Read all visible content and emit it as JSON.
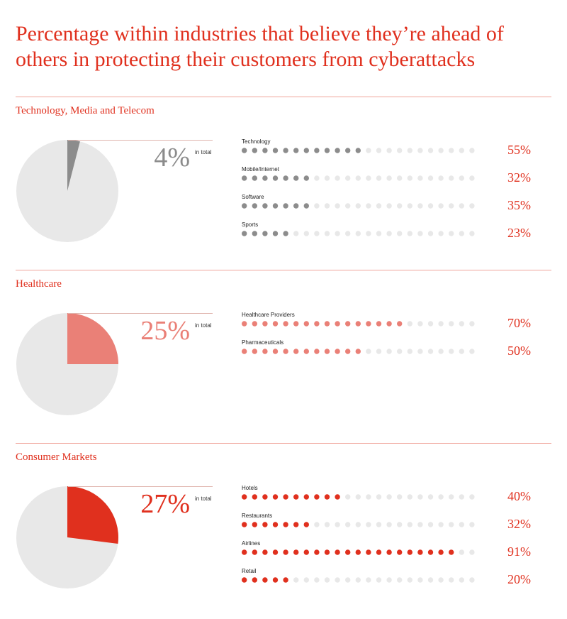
{
  "title": "Percentage within industries that believe they’re ahead of others in protecting their customers from cyberattacks",
  "in_total_label": "in total",
  "colors": {
    "accent": "#e0301e",
    "empty": "#e8e8e8"
  },
  "chart_data": [
    {
      "type": "pie",
      "section": "Technology, Media and Telecom",
      "total_label": "4%",
      "total_value": 4,
      "color": "#8c8c8c",
      "bars": {
        "type": "bar",
        "categories": [
          "Technology",
          "Mobile/Internet",
          "Software",
          "Sports"
        ],
        "values": [
          55,
          32,
          35,
          23
        ],
        "value_labels": [
          "55%",
          "32%",
          "35%",
          "23%"
        ],
        "filled_dots": [
          12,
          7,
          7,
          5
        ],
        "total_dots": 23
      }
    },
    {
      "type": "pie",
      "section": "Healthcare",
      "total_label": "25%",
      "total_value": 25,
      "color": "#ea8077",
      "bars": {
        "type": "bar",
        "categories": [
          "Healthcare Providers",
          "Pharmaceuticals"
        ],
        "values": [
          70,
          50
        ],
        "value_labels": [
          "70%",
          "50%"
        ],
        "filled_dots": [
          16,
          12
        ],
        "total_dots": 23
      }
    },
    {
      "type": "pie",
      "section": "Consumer Markets",
      "total_label": "27%",
      "total_value": 27,
      "color": "#e0301e",
      "bars": {
        "type": "bar",
        "categories": [
          "Hotels",
          "Restaurants",
          "Airlines",
          "Retail"
        ],
        "values": [
          40,
          32,
          91,
          20
        ],
        "value_labels": [
          "40%",
          "32%",
          "91%",
          "20%"
        ],
        "filled_dots": [
          10,
          7,
          21,
          5
        ],
        "total_dots": 23
      }
    }
  ]
}
